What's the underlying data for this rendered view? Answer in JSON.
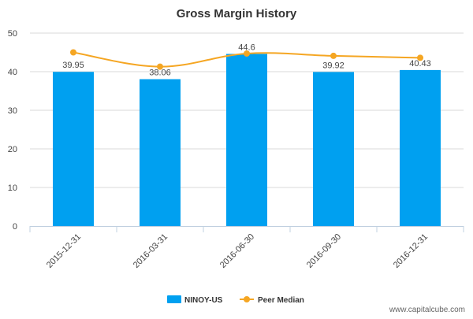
{
  "chart_data": {
    "type": "bar",
    "title": "Gross Margin History",
    "categories": [
      "2015-12-31",
      "2016-03-31",
      "2016-06-30",
      "2016-09-30",
      "2016-12-31"
    ],
    "series": [
      {
        "name": "NINOY-US",
        "kind": "bar",
        "values": [
          39.95,
          38.06,
          44.6,
          39.92,
          40.43
        ],
        "labels": [
          "39.95",
          "38.06",
          "44.6",
          "39.92",
          "40.43"
        ],
        "color": "#00a0f0"
      },
      {
        "name": "Peer Median",
        "kind": "line",
        "values": [
          45.0,
          41.3,
          44.7,
          44.1,
          43.6
        ],
        "color": "#f5a623"
      }
    ],
    "ylim": [
      0,
      50
    ],
    "yticks": [
      0,
      10,
      20,
      30,
      40,
      50
    ],
    "xlabel": "",
    "ylabel": "",
    "grid": true,
    "legend_position": "bottom"
  },
  "watermark": "www.capitalcube.com",
  "colors": {
    "grid": "#d8d8d8",
    "axis": "#c0d0e0",
    "text": "#444444"
  }
}
